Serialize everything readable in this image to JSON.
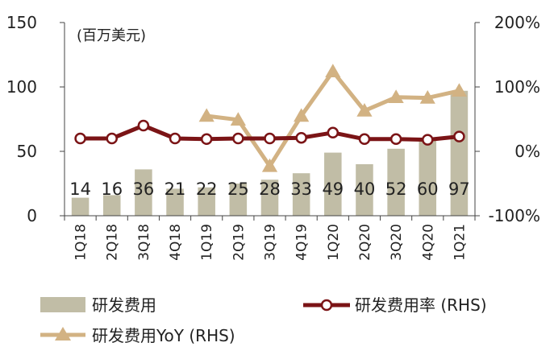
{
  "chart_data": {
    "type": "bar",
    "unit_label": "(百万美元)",
    "categories": [
      "1Q18",
      "2Q18",
      "3Q18",
      "4Q18",
      "1Q19",
      "2Q19",
      "3Q19",
      "4Q19",
      "1Q20",
      "2Q20",
      "3Q20",
      "4Q20",
      "1Q21"
    ],
    "left_axis": {
      "ylim": [
        0,
        150
      ],
      "ticks": [
        "0",
        "50",
        "100",
        "150"
      ]
    },
    "right_axis": {
      "ylim": [
        -100,
        200
      ],
      "ticks": [
        "-100%",
        "0%",
        "100%",
        "200%"
      ]
    },
    "series": [
      {
        "name": "研发费用",
        "kind": "bar",
        "axis": "left",
        "color": "#c1bda6",
        "values": [
          14,
          16,
          36,
          21,
          22,
          25,
          28,
          33,
          49,
          40,
          52,
          60,
          97
        ],
        "labels": [
          "14",
          "16",
          "36",
          "21",
          "22",
          "25",
          "28",
          "33",
          "49",
          "40",
          "52",
          "60",
          "97"
        ]
      },
      {
        "name": "研发费用率 (RHS)",
        "kind": "line",
        "axis": "right",
        "color": "#7b1416",
        "marker": "circle",
        "values": [
          20,
          20,
          40,
          20,
          19,
          20,
          20,
          21,
          29,
          19,
          19,
          18,
          23
        ]
      },
      {
        "name": "研发费用YoY (RHS)",
        "kind": "line",
        "axis": "right",
        "color": "#d2b283",
        "marker": "triangle",
        "values": [
          null,
          null,
          null,
          null,
          55,
          49,
          -23,
          55,
          124,
          63,
          84,
          83,
          94
        ]
      }
    ],
    "legend": {
      "position": "bottom",
      "items": [
        {
          "label": "研发费用",
          "series": 0
        },
        {
          "label": "研发费用率 (RHS)",
          "series": 1
        },
        {
          "label": "研发费用YoY (RHS)",
          "series": 2
        }
      ]
    },
    "grid": false
  }
}
